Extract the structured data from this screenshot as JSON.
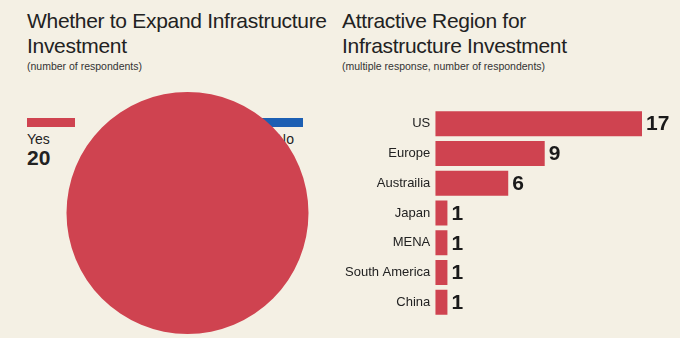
{
  "chart_data": [
    {
      "type": "pie",
      "title": "Whether to Expand Infrastructure Investment",
      "subtitle": "(number of respondents)",
      "categories": [
        "Yes",
        "No"
      ],
      "values": [
        20,
        0
      ],
      "colors": [
        "#cf4350",
        "#1c5fb3"
      ],
      "data_labels": true
    },
    {
      "type": "bar",
      "title": "Attractive Region for Infrastructure Investment",
      "subtitle": "(multiple response, number of respondents)",
      "orientation": "horizontal",
      "categories": [
        "US",
        "Europe",
        "Austrailia",
        "Japan",
        "MENA",
        "South America",
        "China"
      ],
      "values": [
        17,
        9,
        6,
        1,
        1,
        1,
        1
      ],
      "color": "#cf4350",
      "xlim": [
        0,
        17
      ],
      "grid": false,
      "tick_labels": "y",
      "data_labels": true
    }
  ]
}
